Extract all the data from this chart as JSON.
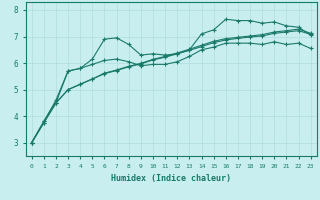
{
  "xlabel": "Humidex (Indice chaleur)",
  "ylabel": "",
  "bg_color": "#c8eef0",
  "grid_color": "#b0dde0",
  "line_color": "#1a7a6a",
  "x_ticks": [
    0,
    1,
    2,
    3,
    4,
    5,
    6,
    7,
    8,
    9,
    10,
    11,
    12,
    13,
    14,
    15,
    16,
    17,
    18,
    19,
    20,
    21,
    22,
    23
  ],
  "y_ticks": [
    3,
    4,
    5,
    6,
    7,
    8
  ],
  "xlim": [
    -0.5,
    23.5
  ],
  "ylim": [
    2.5,
    8.3
  ],
  "line1_x": [
    0,
    1,
    2,
    3,
    4,
    5,
    6,
    7,
    8,
    9,
    10,
    11,
    12,
    13,
    14,
    15,
    16,
    17,
    18,
    19,
    20,
    21,
    22,
    23
  ],
  "line1_y": [
    3.0,
    3.8,
    4.6,
    5.7,
    5.8,
    6.15,
    6.9,
    6.95,
    6.7,
    6.3,
    6.35,
    6.3,
    6.35,
    6.5,
    7.1,
    7.25,
    7.65,
    7.6,
    7.6,
    7.5,
    7.55,
    7.4,
    7.35,
    7.05
  ],
  "line2_x": [
    0,
    1,
    2,
    3,
    4,
    5,
    6,
    7,
    8,
    9,
    10,
    11,
    12,
    13,
    14,
    15,
    16,
    17,
    18,
    19,
    20,
    21,
    22,
    23
  ],
  "line2_y": [
    3.0,
    3.8,
    4.5,
    5.7,
    5.8,
    5.95,
    6.1,
    6.15,
    6.05,
    5.9,
    5.95,
    5.95,
    6.05,
    6.25,
    6.5,
    6.6,
    6.75,
    6.75,
    6.75,
    6.7,
    6.8,
    6.7,
    6.75,
    6.55
  ],
  "line3_x": [
    0,
    1,
    2,
    3,
    4,
    5,
    6,
    7,
    8,
    9,
    10,
    11,
    12,
    13,
    14,
    15,
    16,
    17,
    18,
    19,
    20,
    21,
    22,
    23
  ],
  "line3_y": [
    3.0,
    3.75,
    4.5,
    5.0,
    5.2,
    5.4,
    5.6,
    5.72,
    5.86,
    5.97,
    6.12,
    6.22,
    6.35,
    6.48,
    6.62,
    6.77,
    6.87,
    6.93,
    6.98,
    7.02,
    7.12,
    7.17,
    7.22,
    7.08
  ],
  "line4_x": [
    0,
    1,
    2,
    3,
    4,
    5,
    6,
    7,
    8,
    9,
    10,
    11,
    12,
    13,
    14,
    15,
    16,
    17,
    18,
    19,
    20,
    21,
    22,
    23
  ],
  "line4_y": [
    3.0,
    3.75,
    4.5,
    5.0,
    5.2,
    5.4,
    5.62,
    5.74,
    5.88,
    5.99,
    6.14,
    6.25,
    6.38,
    6.52,
    6.67,
    6.82,
    6.92,
    6.97,
    7.02,
    7.07,
    7.17,
    7.22,
    7.28,
    7.12
  ]
}
